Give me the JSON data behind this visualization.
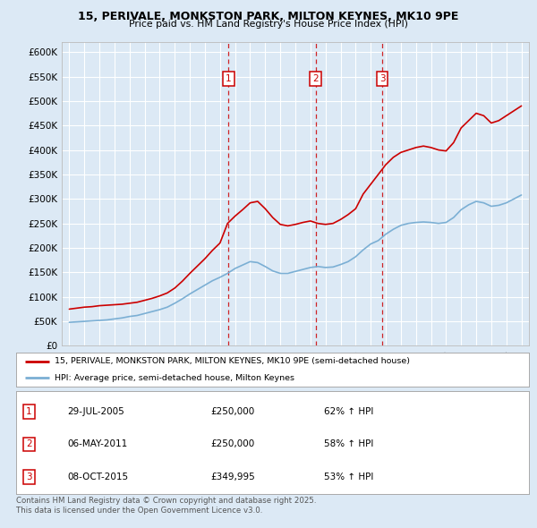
{
  "title": "15, PERIVALE, MONKSTON PARK, MILTON KEYNES, MK10 9PE",
  "subtitle": "Price paid vs. HM Land Registry's House Price Index (HPI)",
  "background_color": "#dce9f5",
  "plot_bg_color": "#dce9f5",
  "red_line_color": "#cc0000",
  "blue_line_color": "#7bafd4",
  "grid_color": "#ffffff",
  "ylim": [
    0,
    620000
  ],
  "yticks": [
    0,
    50000,
    100000,
    150000,
    200000,
    250000,
    300000,
    350000,
    400000,
    450000,
    500000,
    550000,
    600000
  ],
  "ytick_labels": [
    "£0",
    "£50K",
    "£100K",
    "£150K",
    "£200K",
    "£250K",
    "£300K",
    "£350K",
    "£400K",
    "£450K",
    "£500K",
    "£550K",
    "£600K"
  ],
  "xlim_start": 1994.5,
  "xlim_end": 2025.5,
  "transaction_dates": [
    2005.57,
    2011.34,
    2015.76
  ],
  "transaction_prices": [
    250000,
    250000,
    349995
  ],
  "transaction_labels": [
    "1",
    "2",
    "3"
  ],
  "legend_entries": [
    "15, PERIVALE, MONKSTON PARK, MILTON KEYNES, MK10 9PE (semi-detached house)",
    "HPI: Average price, semi-detached house, Milton Keynes"
  ],
  "table_data": [
    [
      "1",
      "29-JUL-2005",
      "£250,000",
      "62% ↑ HPI"
    ],
    [
      "2",
      "06-MAY-2011",
      "£250,000",
      "58% ↑ HPI"
    ],
    [
      "3",
      "08-OCT-2015",
      "£349,995",
      "53% ↑ HPI"
    ]
  ],
  "footer": "Contains HM Land Registry data © Crown copyright and database right 2025.\nThis data is licensed under the Open Government Licence v3.0.",
  "red_x": [
    1995.0,
    1995.5,
    1996.0,
    1996.5,
    1997.0,
    1997.5,
    1998.0,
    1998.5,
    1999.0,
    1999.5,
    2000.0,
    2000.5,
    2001.0,
    2001.5,
    2002.0,
    2002.5,
    2003.0,
    2003.5,
    2004.0,
    2004.5,
    2005.0,
    2005.5,
    2006.0,
    2006.5,
    2007.0,
    2007.5,
    2008.0,
    2008.5,
    2009.0,
    2009.5,
    2010.0,
    2010.5,
    2011.0,
    2011.5,
    2012.0,
    2012.5,
    2013.0,
    2013.5,
    2014.0,
    2014.5,
    2015.0,
    2015.5,
    2016.0,
    2016.5,
    2017.0,
    2017.5,
    2018.0,
    2018.5,
    2019.0,
    2019.5,
    2020.0,
    2020.5,
    2021.0,
    2021.5,
    2022.0,
    2022.5,
    2023.0,
    2023.5,
    2024.0,
    2024.5,
    2025.0
  ],
  "red_y": [
    75000,
    77000,
    79000,
    80000,
    82000,
    83000,
    84000,
    85000,
    87000,
    89000,
    93000,
    97000,
    102000,
    108000,
    118000,
    132000,
    148000,
    163000,
    178000,
    195000,
    210000,
    250000,
    265000,
    278000,
    292000,
    295000,
    280000,
    262000,
    248000,
    245000,
    248000,
    252000,
    255000,
    250000,
    248000,
    250000,
    258000,
    268000,
    280000,
    310000,
    330000,
    349995,
    370000,
    385000,
    395000,
    400000,
    405000,
    408000,
    405000,
    400000,
    398000,
    415000,
    445000,
    460000,
    475000,
    470000,
    455000,
    460000,
    470000,
    480000,
    490000
  ],
  "blue_x": [
    1995.0,
    1995.5,
    1996.0,
    1996.5,
    1997.0,
    1997.5,
    1998.0,
    1998.5,
    1999.0,
    1999.5,
    2000.0,
    2000.5,
    2001.0,
    2001.5,
    2002.0,
    2002.5,
    2003.0,
    2003.5,
    2004.0,
    2004.5,
    2005.0,
    2005.5,
    2006.0,
    2006.5,
    2007.0,
    2007.5,
    2008.0,
    2008.5,
    2009.0,
    2009.5,
    2010.0,
    2010.5,
    2011.0,
    2011.5,
    2012.0,
    2012.5,
    2013.0,
    2013.5,
    2014.0,
    2014.5,
    2015.0,
    2015.5,
    2016.0,
    2016.5,
    2017.0,
    2017.5,
    2018.0,
    2018.5,
    2019.0,
    2019.5,
    2020.0,
    2020.5,
    2021.0,
    2021.5,
    2022.0,
    2022.5,
    2023.0,
    2023.5,
    2024.0,
    2024.5,
    2025.0
  ],
  "blue_y": [
    48000,
    49000,
    50000,
    51000,
    52000,
    53000,
    55000,
    57000,
    60000,
    62000,
    66000,
    70000,
    74000,
    79000,
    87000,
    96000,
    106000,
    115000,
    124000,
    133000,
    140000,
    148000,
    158000,
    165000,
    172000,
    170000,
    162000,
    153000,
    148000,
    148000,
    152000,
    156000,
    160000,
    162000,
    160000,
    161000,
    166000,
    172000,
    182000,
    196000,
    208000,
    215000,
    228000,
    238000,
    246000,
    250000,
    252000,
    253000,
    252000,
    250000,
    252000,
    262000,
    278000,
    288000,
    295000,
    292000,
    285000,
    287000,
    292000,
    300000,
    308000
  ]
}
